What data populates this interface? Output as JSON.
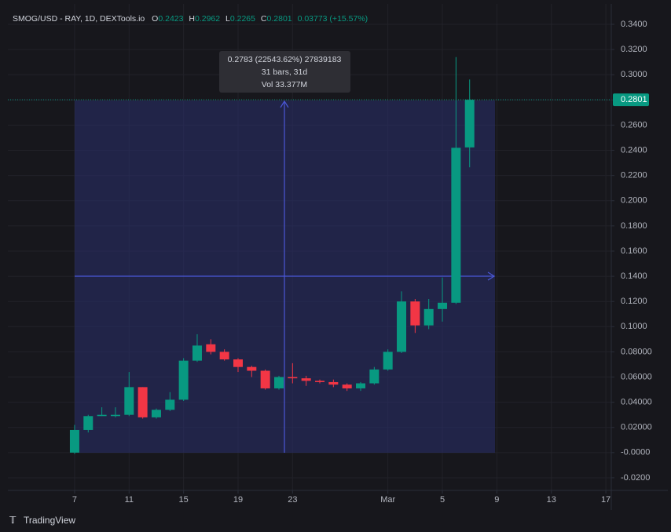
{
  "chart_data": {
    "type": "candlestick",
    "header": {
      "symbol": "SMOG/USD - RAY, 1D, DEXTools.io",
      "o_label": "O",
      "o": "0.2423",
      "h_label": "H",
      "h": "0.2962",
      "l_label": "L",
      "l": "0.2265",
      "c_label": "C",
      "c": "0.2801",
      "change": "0.03773 (+15.57%)"
    },
    "measure": {
      "line1": "0.2783 (22543.62%) 27839183",
      "line2": "31 bars, 31d",
      "line3": "Vol 33.377M"
    },
    "brand": "TradingView",
    "up_color": "#089981",
    "down_color": "#f23645",
    "x": [
      0,
      1,
      2,
      3,
      4,
      5,
      6,
      7,
      8,
      9,
      10,
      11,
      12,
      13,
      14,
      15,
      16,
      17,
      18,
      19,
      20,
      21,
      22,
      23,
      24,
      25,
      26,
      27,
      28,
      29
    ],
    "open": [
      0.0,
      0.018,
      0.029,
      0.029,
      0.03,
      0.052,
      0.028,
      0.034,
      0.042,
      0.073,
      0.086,
      0.08,
      0.074,
      0.068,
      0.065,
      0.051,
      0.06,
      0.059,
      0.057,
      0.056,
      0.054,
      0.051,
      0.055,
      0.066,
      0.08,
      0.12,
      0.101,
      0.114,
      0.119,
      0.2423
    ],
    "high": [
      0.022,
      0.03,
      0.036,
      0.036,
      0.064,
      0.052,
      0.035,
      0.048,
      0.075,
      0.094,
      0.09,
      0.082,
      0.075,
      0.069,
      0.066,
      0.061,
      0.071,
      0.061,
      0.058,
      0.058,
      0.055,
      0.056,
      0.068,
      0.082,
      0.128,
      0.122,
      0.122,
      0.139,
      0.314,
      0.2962
    ],
    "low": [
      -0.001,
      0.016,
      0.029,
      0.028,
      0.029,
      0.027,
      0.027,
      0.033,
      0.041,
      0.072,
      0.078,
      0.073,
      0.064,
      0.06,
      0.05,
      0.05,
      0.055,
      0.053,
      0.055,
      0.052,
      0.049,
      0.049,
      0.054,
      0.065,
      0.079,
      0.095,
      0.098,
      0.104,
      0.118,
      0.2265
    ],
    "close": [
      0.018,
      0.029,
      0.03,
      0.03,
      0.052,
      0.028,
      0.034,
      0.042,
      0.073,
      0.085,
      0.08,
      0.074,
      0.068,
      0.065,
      0.051,
      0.06,
      0.059,
      0.057,
      0.056,
      0.054,
      0.051,
      0.055,
      0.066,
      0.08,
      0.12,
      0.101,
      0.114,
      0.119,
      0.242,
      0.2801
    ],
    "last_price": 0.2801,
    "xlim": [
      -4.9,
      39.4
    ],
    "xticks": [
      {
        "value": 0,
        "label": "7"
      },
      {
        "value": 4,
        "label": "11"
      },
      {
        "value": 8,
        "label": "15"
      },
      {
        "value": 12,
        "label": "19"
      },
      {
        "value": 16,
        "label": "23"
      },
      {
        "value": 23,
        "label": "Mar"
      },
      {
        "value": 27,
        "label": "5"
      },
      {
        "value": 31,
        "label": "9"
      },
      {
        "value": 35,
        "label": "13"
      },
      {
        "value": 39,
        "label": "17"
      }
    ],
    "ylim": [
      -0.03,
      0.3562
    ],
    "yticks": [
      {
        "value": 0.34,
        "label": "0.3400"
      },
      {
        "value": 0.32,
        "label": "0.3200"
      },
      {
        "value": 0.3,
        "label": "0.3000"
      },
      {
        "value": 0.28,
        "label": "0.2800"
      },
      {
        "value": 0.26,
        "label": "0.2600"
      },
      {
        "value": 0.24,
        "label": "0.2400"
      },
      {
        "value": 0.22,
        "label": "0.2200"
      },
      {
        "value": 0.2,
        "label": "0.2000"
      },
      {
        "value": 0.18,
        "label": "0.1800"
      },
      {
        "value": 0.16,
        "label": "0.1600"
      },
      {
        "value": 0.14,
        "label": "0.1400"
      },
      {
        "value": 0.12,
        "label": "0.1200"
      },
      {
        "value": 0.1,
        "label": "0.1000"
      },
      {
        "value": 0.08,
        "label": "0.08000"
      },
      {
        "value": 0.06,
        "label": "0.06000"
      },
      {
        "value": 0.04,
        "label": "0.04000"
      },
      {
        "value": 0.02,
        "label": "0.02000"
      },
      {
        "value": 0,
        "label": "-0.0000"
      },
      {
        "value": -0.02,
        "label": "-0.0200"
      }
    ],
    "grid": true
  }
}
